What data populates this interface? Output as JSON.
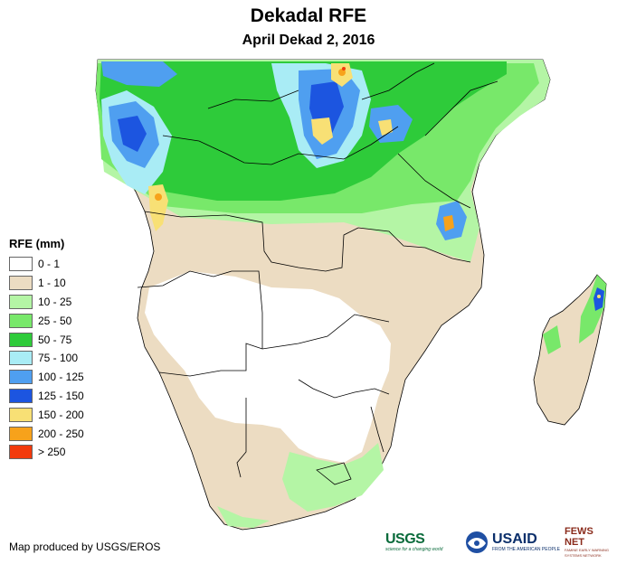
{
  "title": "Dekadal RFE",
  "subtitle": "April Dekad 2, 2016",
  "legend": {
    "title": "RFE (mm)",
    "items": [
      {
        "label": "0 - 1",
        "color": "#ffffff"
      },
      {
        "label": "1 - 10",
        "color": "#ecdcc2"
      },
      {
        "label": "10 - 25",
        "color": "#b4f5a5"
      },
      {
        "label": "25 - 50",
        "color": "#78e86a"
      },
      {
        "label": "50 - 75",
        "color": "#2ecb3a"
      },
      {
        "label": "75 - 100",
        "color": "#a9ecf5"
      },
      {
        "label": "100 - 125",
        "color": "#4f9ff0"
      },
      {
        "label": "125 - 150",
        "color": "#1c55e0"
      },
      {
        "label": "150 - 200",
        "color": "#f8e075"
      },
      {
        "label": "200 - 250",
        "color": "#f7a21b"
      },
      {
        "label": "> 250",
        "color": "#f23a0c"
      }
    ]
  },
  "credit": "Map produced by USGS/EROS",
  "logos": {
    "usgs": "USGS",
    "usgs_tagline": "science for a changing world",
    "usaid": "USAID",
    "usaid_tagline": "FROM THE AMERICAN PEOPLE",
    "fews": "FEWS NET",
    "fews_tagline": "FAMINE EARLY WARNING SYSTEMS NETWORK"
  }
}
